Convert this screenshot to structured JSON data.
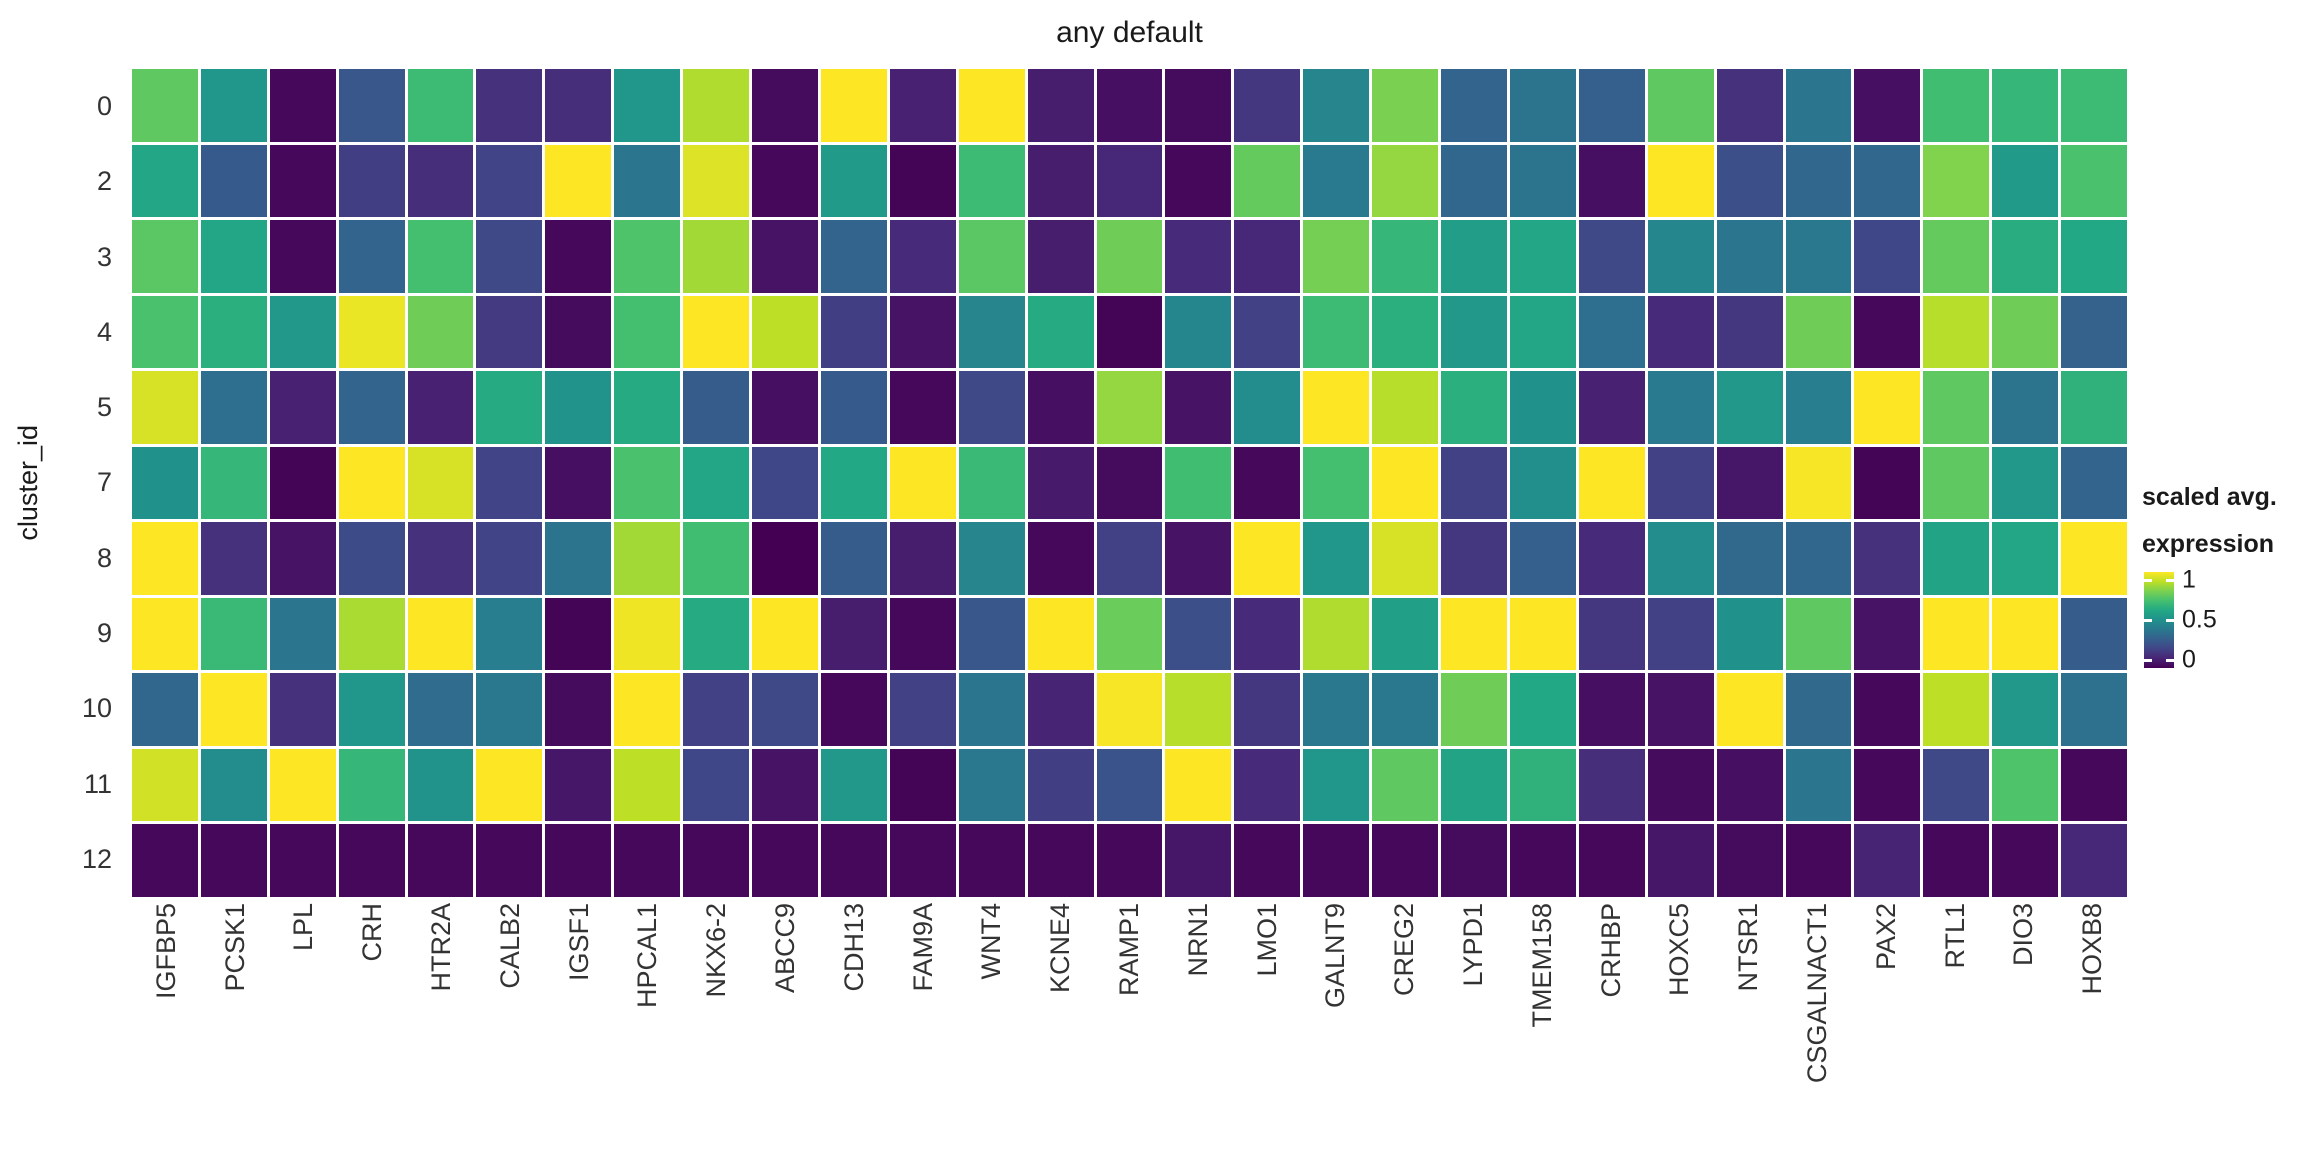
{
  "title": "any default",
  "y_axis": {
    "label": "cluster_id"
  },
  "legend": {
    "title_line1": "scaled avg.",
    "title_line2": "expression",
    "ticks": [
      {
        "label": "1",
        "fraction": 1.0
      },
      {
        "label": "0.5",
        "fraction": 0.5
      },
      {
        "label": "0",
        "fraction": 0.0
      }
    ]
  },
  "colors": {
    "background": "#ffffff",
    "grid_line": "#ffffff",
    "title_text": "#1a1a1a",
    "axis_text": "#333333",
    "viridis_stops": [
      "#440154",
      "#482475",
      "#414487",
      "#355f8d",
      "#2a788e",
      "#21918c",
      "#22a884",
      "#44bf70",
      "#7ad151",
      "#bddf26",
      "#fde725"
    ]
  },
  "chart_data": {
    "type": "heatmap",
    "title": "any default",
    "xlabel": "",
    "ylabel": "cluster_id",
    "legend_label": "scaled avg. expression",
    "colormap": "viridis",
    "value_range": [
      0,
      1
    ],
    "rows": [
      "0",
      "2",
      "3",
      "4",
      "5",
      "7",
      "8",
      "9",
      "10",
      "11",
      "12"
    ],
    "columns": [
      "IGFBP5",
      "PCSK1",
      "LPL",
      "CRH",
      "HTR2A",
      "CALB2",
      "IGSF1",
      "HPCAL1",
      "NKX6-2",
      "ABCC9",
      "CDH13",
      "FAM9A",
      "WNT4",
      "KCNE4",
      "RAMP1",
      "NRN1",
      "LMO1",
      "GALNT9",
      "CREG2",
      "LYPD1",
      "TMEM158",
      "CRHBP",
      "HOXC5",
      "NTSR1",
      "CSGALNACT1",
      "PAX2",
      "RTL1",
      "DIO3",
      "HOXB8"
    ],
    "values": [
      [
        0.75,
        0.52,
        0.02,
        0.27,
        0.68,
        0.14,
        0.13,
        0.52,
        0.88,
        0.03,
        1.0,
        0.09,
        1.0,
        0.08,
        0.04,
        0.03,
        0.16,
        0.45,
        0.8,
        0.32,
        0.38,
        0.3,
        0.75,
        0.14,
        0.39,
        0.04,
        0.69,
        0.66,
        0.68
      ],
      [
        0.59,
        0.28,
        0.02,
        0.18,
        0.13,
        0.2,
        1.0,
        0.39,
        0.95,
        0.02,
        0.54,
        0.01,
        0.68,
        0.08,
        0.11,
        0.02,
        0.76,
        0.41,
        0.84,
        0.33,
        0.38,
        0.04,
        1.0,
        0.24,
        0.33,
        0.33,
        0.81,
        0.54,
        0.71
      ],
      [
        0.74,
        0.59,
        0.02,
        0.32,
        0.7,
        0.22,
        0.02,
        0.72,
        0.86,
        0.05,
        0.32,
        0.12,
        0.74,
        0.08,
        0.78,
        0.12,
        0.11,
        0.79,
        0.66,
        0.55,
        0.59,
        0.22,
        0.46,
        0.39,
        0.4,
        0.21,
        0.76,
        0.62,
        0.6
      ],
      [
        0.71,
        0.63,
        0.53,
        0.97,
        0.78,
        0.17,
        0.03,
        0.7,
        1.0,
        0.9,
        0.18,
        0.05,
        0.45,
        0.61,
        0.01,
        0.46,
        0.19,
        0.68,
        0.63,
        0.53,
        0.59,
        0.36,
        0.12,
        0.16,
        0.78,
        0.02,
        0.89,
        0.78,
        0.31
      ],
      [
        0.94,
        0.36,
        0.09,
        0.32,
        0.09,
        0.61,
        0.51,
        0.61,
        0.29,
        0.04,
        0.28,
        0.02,
        0.22,
        0.04,
        0.84,
        0.05,
        0.48,
        1.0,
        0.89,
        0.63,
        0.5,
        0.09,
        0.41,
        0.53,
        0.42,
        1.0,
        0.75,
        0.38,
        0.64
      ],
      [
        0.5,
        0.66,
        0.01,
        1.0,
        0.94,
        0.2,
        0.04,
        0.71,
        0.59,
        0.21,
        0.6,
        1.0,
        0.67,
        0.07,
        0.03,
        0.69,
        0.02,
        0.7,
        1.0,
        0.19,
        0.49,
        1.0,
        0.19,
        0.06,
        0.99,
        0.01,
        0.75,
        0.53,
        0.32
      ],
      [
        1.0,
        0.14,
        0.05,
        0.23,
        0.14,
        0.2,
        0.38,
        0.86,
        0.69,
        0.0,
        0.29,
        0.08,
        0.45,
        0.02,
        0.19,
        0.05,
        1.0,
        0.52,
        0.94,
        0.16,
        0.3,
        0.12,
        0.48,
        0.34,
        0.33,
        0.14,
        0.58,
        0.59,
        1.0
      ],
      [
        1.0,
        0.67,
        0.39,
        0.87,
        1.0,
        0.42,
        0.01,
        0.98,
        0.61,
        1.0,
        0.08,
        0.02,
        0.27,
        1.0,
        0.77,
        0.24,
        0.12,
        0.88,
        0.56,
        1.0,
        1.0,
        0.16,
        0.19,
        0.5,
        0.75,
        0.05,
        1.0,
        1.0,
        0.29
      ],
      [
        0.33,
        1.0,
        0.14,
        0.52,
        0.35,
        0.4,
        0.03,
        1.0,
        0.19,
        0.22,
        0.02,
        0.19,
        0.39,
        0.1,
        0.99,
        0.89,
        0.16,
        0.4,
        0.4,
        0.78,
        0.6,
        0.04,
        0.05,
        1.0,
        0.34,
        0.02,
        0.9,
        0.53,
        0.37
      ],
      [
        0.93,
        0.48,
        1.0,
        0.66,
        0.51,
        1.0,
        0.06,
        0.9,
        0.21,
        0.05,
        0.53,
        0.01,
        0.4,
        0.18,
        0.26,
        1.0,
        0.12,
        0.52,
        0.75,
        0.58,
        0.64,
        0.13,
        0.03,
        0.04,
        0.39,
        0.02,
        0.22,
        0.72,
        0.02
      ],
      [
        0.02,
        0.02,
        0.02,
        0.02,
        0.02,
        0.02,
        0.02,
        0.02,
        0.02,
        0.02,
        0.02,
        0.02,
        0.02,
        0.02,
        0.02,
        0.06,
        0.02,
        0.02,
        0.02,
        0.03,
        0.02,
        0.02,
        0.06,
        0.03,
        0.02,
        0.1,
        0.02,
        0.02,
        0.11
      ]
    ]
  }
}
